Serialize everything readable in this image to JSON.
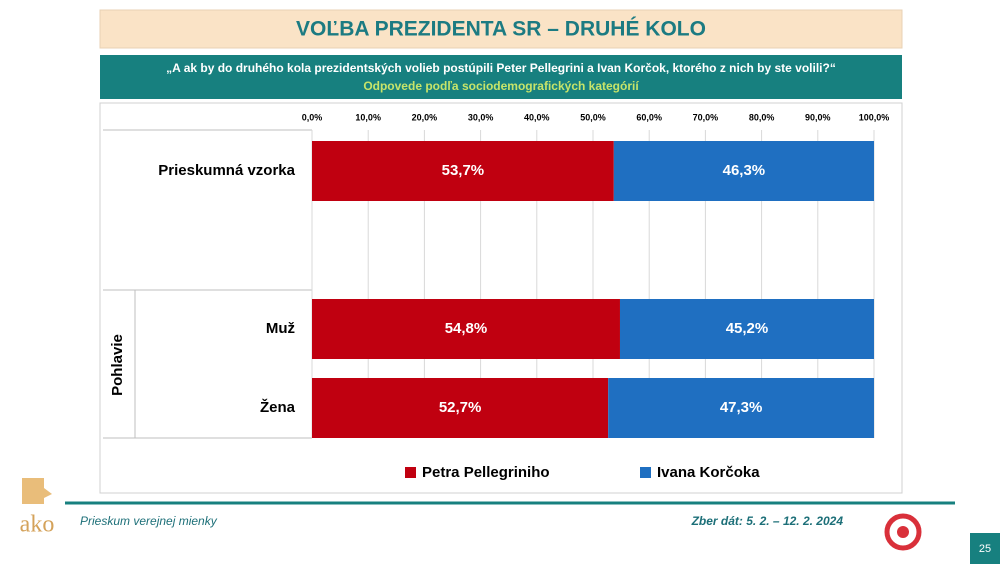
{
  "header": {
    "title": "VOĽBA PREZIDENTA SR – DRUHÉ KOLO",
    "question": "„A ak by do druhého kola prezidentských volieb postúpili Peter Pellegrini a Ivan Korčok, ktorého z nich by ste volili?“",
    "subtitle": "Odpovede podľa sociodemografických kategórií"
  },
  "chart_data": {
    "type": "stacked-bar",
    "categories": [
      "Prieskumná vzorka",
      "Muž",
      "Žena"
    ],
    "group_label": "Pohlavie",
    "series": [
      {
        "name": "Petra Pellegriniho",
        "color": "#c00010",
        "values": [
          53.7,
          54.8,
          52.7
        ],
        "value_labels": [
          "53,7%",
          "54,8%",
          "52,7%"
        ]
      },
      {
        "name": "Ivana Korčoka",
        "color": "#1f6fc1",
        "values": [
          46.3,
          45.2,
          47.3
        ],
        "value_labels": [
          "46,3%",
          "45,2%",
          "47,3%"
        ]
      }
    ],
    "xlim": [
      0,
      100
    ],
    "xticks": [
      {
        "value": 0,
        "label": "0,0%"
      },
      {
        "value": 10,
        "label": "10,0%"
      },
      {
        "value": 20,
        "label": "20,0%"
      },
      {
        "value": 30,
        "label": "30,0%"
      },
      {
        "value": 40,
        "label": "40,0%"
      },
      {
        "value": 50,
        "label": "50,0%"
      },
      {
        "value": 60,
        "label": "60,0%"
      },
      {
        "value": 70,
        "label": "70,0%"
      },
      {
        "value": 80,
        "label": "80,0%"
      },
      {
        "value": 90,
        "label": "90,0%"
      },
      {
        "value": 100,
        "label": "100,0%"
      }
    ],
    "grid": true
  },
  "footer": {
    "logo": "ako",
    "left": "Prieskum verejnej mienky",
    "right": "Zber dát: 5. 2. – 12. 2. 2024",
    "page": "25"
  }
}
